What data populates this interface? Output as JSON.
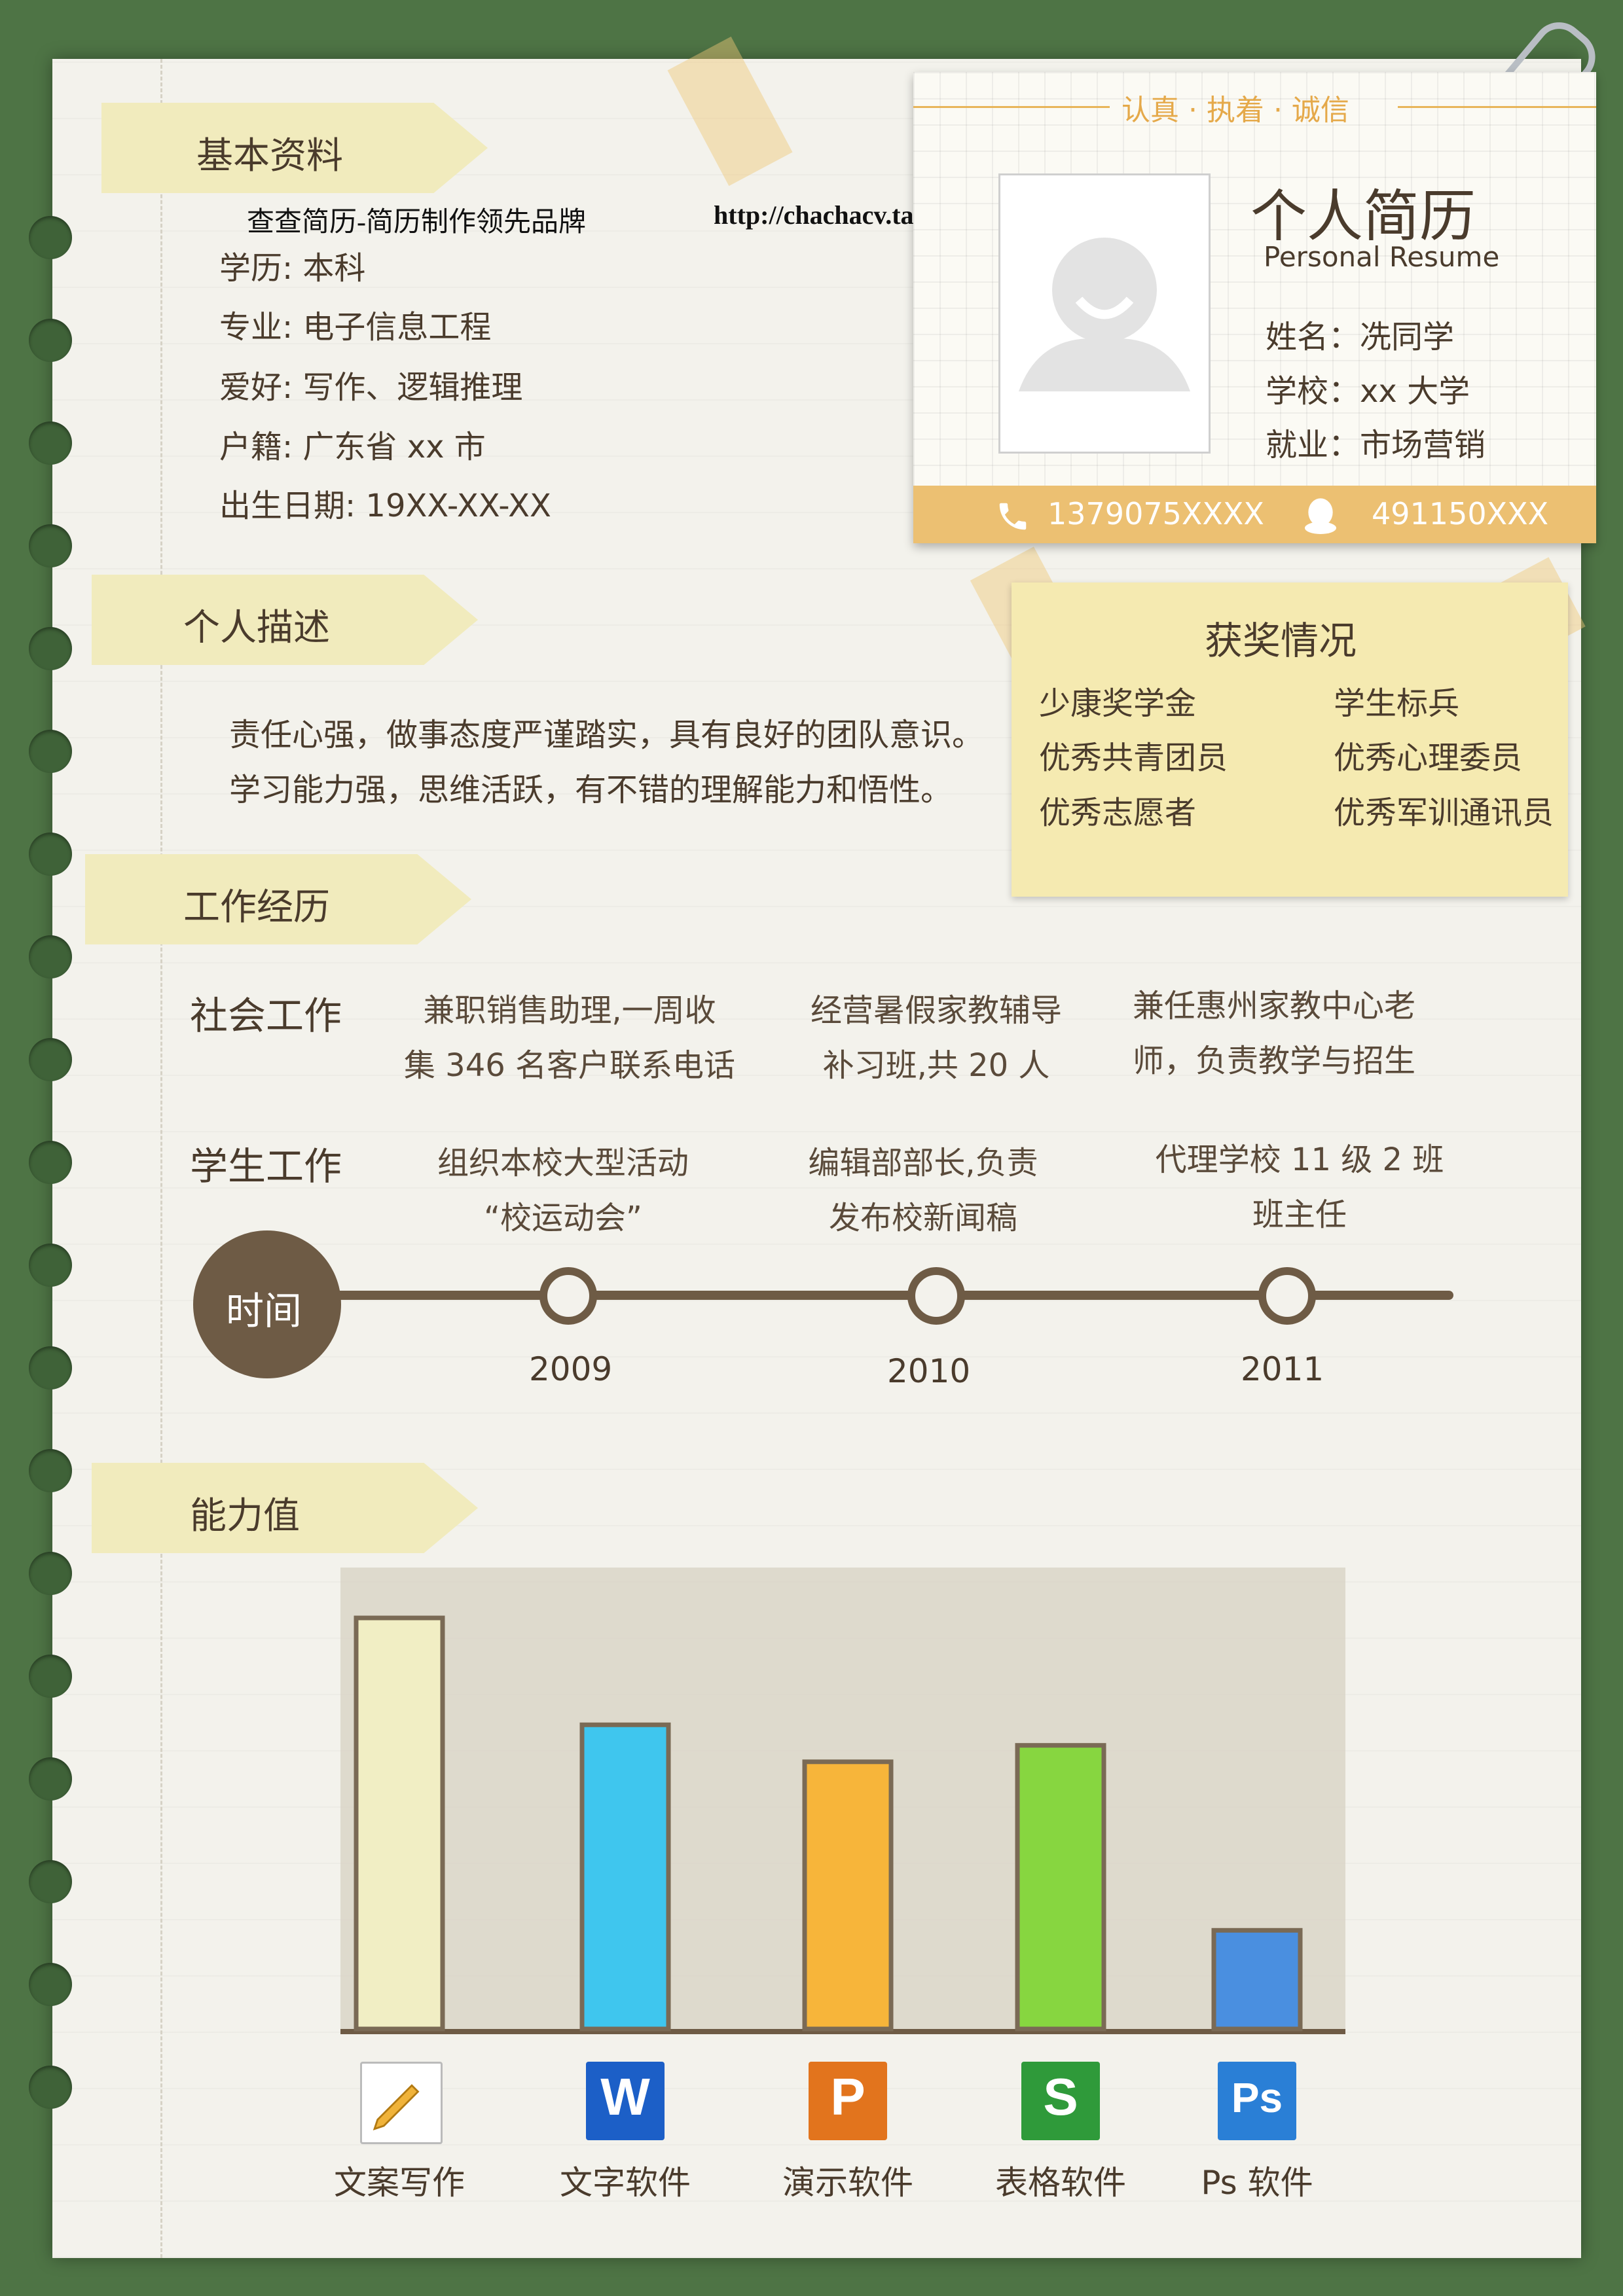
{
  "brand": {
    "name": "查查简历-简历制作领先品牌",
    "url": "http://chachacv.taobao.com"
  },
  "sections": {
    "basic": "基本资料",
    "description": "个人描述",
    "work": "工作经历",
    "ability": "能力值"
  },
  "basic_info": [
    "学历: 本科",
    "专业: 电子信息工程",
    "爱好: 写作、逻辑推理",
    "户籍: 广东省 xx 市",
    "出生日期: 19XX-XX-XX"
  ],
  "card": {
    "motto": "认真 · 执着 · 诚信",
    "title": "个人简历",
    "subtitle": "Personal Resume",
    "fields": [
      "姓名：冼同学",
      "学校：xx 大学",
      "就业：市场营销"
    ],
    "phone": "1379075XXXX",
    "qq": "491150XXX"
  },
  "awards": {
    "title": "获奖情况",
    "items": [
      "少康奖学金",
      "学生标兵",
      "优秀共青团员",
      "优秀心理委员",
      "优秀志愿者",
      "优秀军训通讯员"
    ]
  },
  "description": [
    "责任心强，做事态度严谨踏实，具有良好的团队意识。",
    "学习能力强，思维活跃，有不错的理解能力和悟性。"
  ],
  "work": {
    "social_label": "社会工作",
    "student_label": "学生工作",
    "social": [
      [
        "兼职销售助理,一周收",
        "集 346 名客户联系电话"
      ],
      [
        "经营暑假家教辅导",
        "补习班,共 20 人"
      ],
      [
        "兼任惠州家教中心老",
        "师，负责教学与招生"
      ]
    ],
    "student": [
      [
        "组织本校大型活动",
        "“校运动会”"
      ],
      [
        "编辑部部长,负责",
        "发布校新闻稿"
      ],
      [
        "代理学校 11 级 2 班",
        "班主任"
      ]
    ],
    "timeline_label": "时间",
    "years": [
      "2009",
      "2010",
      "2011"
    ]
  },
  "chart_data": {
    "type": "bar",
    "categories": [
      "文案写作",
      "文字软件",
      "演示软件",
      "表格软件",
      "Ps 软件"
    ],
    "values": [
      100,
      74,
      65,
      69,
      24
    ],
    "ylim": [
      0,
      100
    ],
    "colors": [
      "#f1eec4",
      "#3fc6ee",
      "#f7b53a",
      "#87d640",
      "#4a8fe0"
    ],
    "icon_letters": [
      "",
      "W",
      "P",
      "S",
      "Ps"
    ],
    "icon_colors": [
      "#ffffff",
      "#1c5fc7",
      "#e2741d",
      "#2f9a3a",
      "#2a7fd6"
    ]
  }
}
